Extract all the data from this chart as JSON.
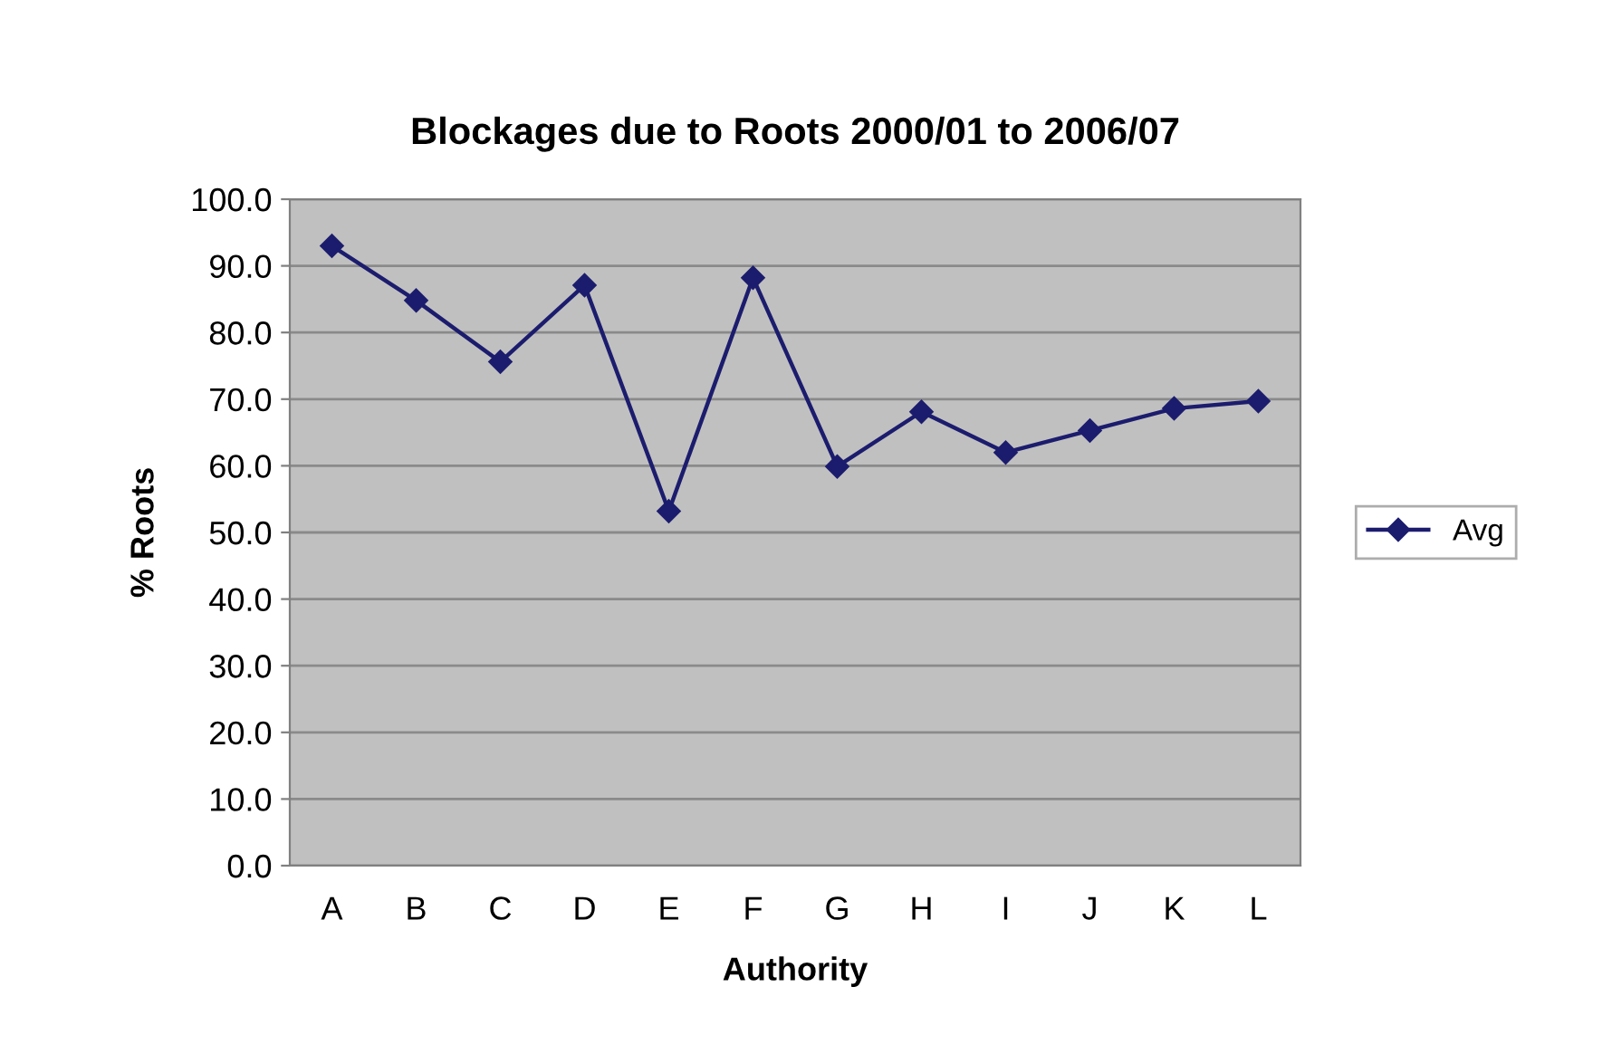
{
  "chart_data": {
    "type": "line",
    "title": "Blockages due to Roots 2000/01 to 2006/07",
    "xlabel": "Authority",
    "ylabel": "% Roots",
    "categories": [
      "A",
      "B",
      "C",
      "D",
      "E",
      "F",
      "G",
      "H",
      "I",
      "J",
      "K",
      "L"
    ],
    "series": [
      {
        "name": "Avg",
        "color": "#1c1c6e",
        "values": [
          93.0,
          84.8,
          75.6,
          87.1,
          53.2,
          88.2,
          59.9,
          68.1,
          62.0,
          65.3,
          68.6,
          69.7
        ]
      }
    ],
    "ylim": [
      0,
      100
    ],
    "yticks": [
      {
        "value": 0,
        "label": "0.0"
      },
      {
        "value": 10,
        "label": "10.0"
      },
      {
        "value": 20,
        "label": "20.0"
      },
      {
        "value": 30,
        "label": "30.0"
      },
      {
        "value": 40,
        "label": "40.0"
      },
      {
        "value": 50,
        "label": "50.0"
      },
      {
        "value": 60,
        "label": "60.0"
      },
      {
        "value": 70,
        "label": "70.0"
      },
      {
        "value": 80,
        "label": "80.0"
      },
      {
        "value": 90,
        "label": "90.0"
      },
      {
        "value": 100,
        "label": "100.0"
      }
    ],
    "grid": "y",
    "legend": "right",
    "marker": "diamond",
    "line_style": "solid"
  }
}
